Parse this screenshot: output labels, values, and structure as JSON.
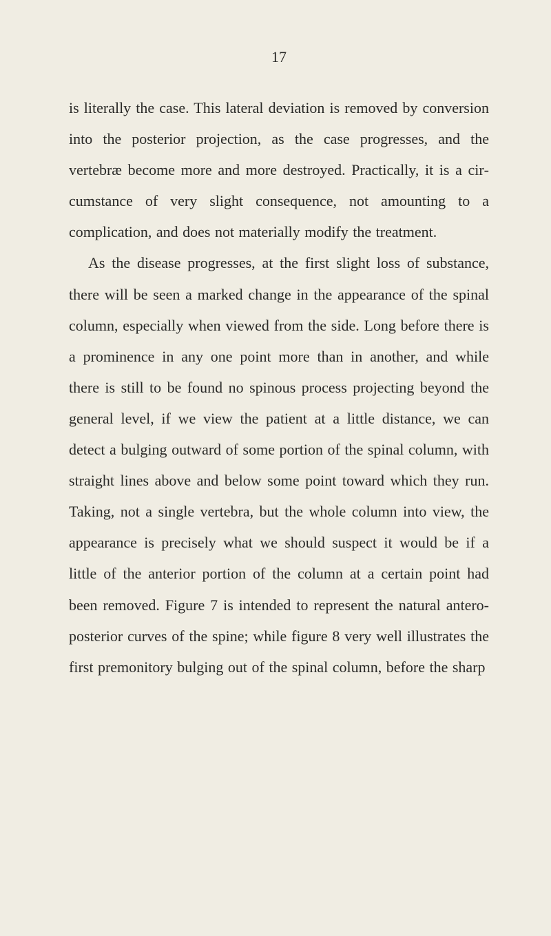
{
  "page": {
    "number": "17",
    "paragraph1": "is literally the case. This lateral deviation is re­moved by conversion into the posterior projection, as the case progresses, and the vertebræ become more and more destroyed. Practically, it is a cir­cumstance of very slight consequence, not amount­ing to a complication, and does not materially modify the treatment.",
    "paragraph2": "As the disease progresses, at the first slight loss of substance, there will be seen a marked change in the appearance of the spinal column, especially when viewed from the side. Long before there is a prominence in any one point more than in an­other, and while there is still to be found no spinous process projecting beyond the general level, if we view the patient at a little distance, we can detect a bulging outward of some portion of the spinal column, with straight lines above and below some point toward which they run. Taking, not a single vertebra, but the whole column into view, the appearance is precisely what we should suspect it would be if a little of the anterior por­tion of the column at a certain point had been removed. Figure 7 is intended to represent the natural antero-posterior curves of the spine; while figure 8 very well illustrates the first premonitory bulging out of the spinal column, before the sharp"
  },
  "colors": {
    "background": "#f0ede3",
    "text": "#2a2a28"
  },
  "typography": {
    "page_number_fontsize": 22,
    "body_fontsize": 22,
    "line_height": 2.05,
    "font_family": "Georgia"
  }
}
